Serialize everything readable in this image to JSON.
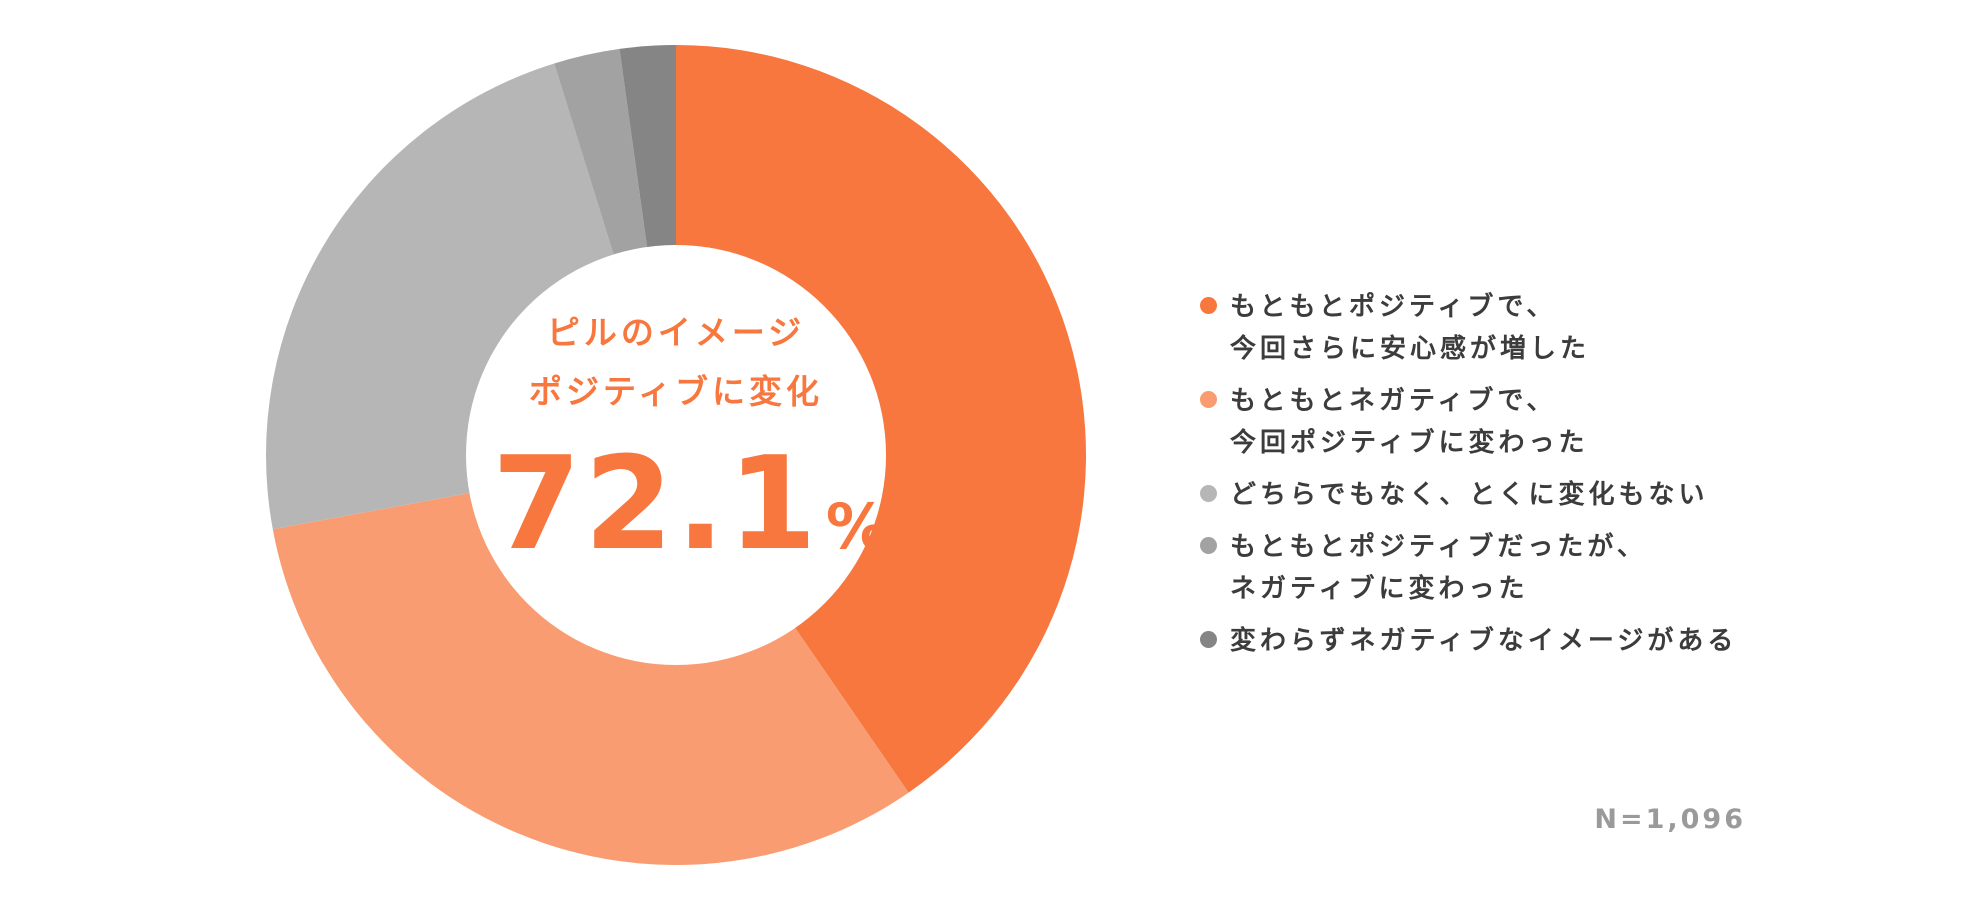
{
  "chart_data": {
    "type": "pie",
    "center_label": {
      "line1": "ピルのイメージ",
      "line2": "ポジティブに変化",
      "value": "72.1",
      "unit": "%"
    },
    "slices": [
      {
        "label_lines": [
          "もともとポジティブで、",
          "今回さらに安心感が増した"
        ],
        "value": 40.4,
        "color": "#f7773e"
      },
      {
        "label_lines": [
          "もともとネガティブで、",
          "今回ポジティブに変わった"
        ],
        "value": 31.7,
        "color": "#f99c72"
      },
      {
        "label_lines": [
          "どちらでもなく、とくに変化もない"
        ],
        "value": 23.1,
        "color": "#b6b6b6"
      },
      {
        "label_lines": [
          "もともとポジティブだったが、",
          "ネガティブに変わった"
        ],
        "value": 2.6,
        "color": "#a2a2a2"
      },
      {
        "label_lines": [
          "変わらずネガティブなイメージがある"
        ],
        "value": 2.2,
        "color": "#858585"
      }
    ],
    "sample_size": "N=1,096"
  }
}
